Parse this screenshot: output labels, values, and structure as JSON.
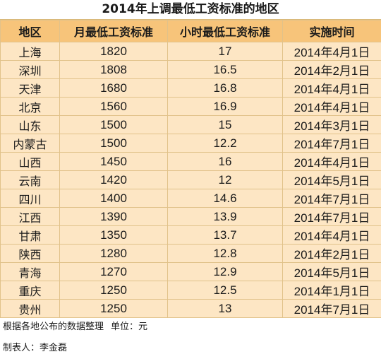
{
  "title": "2014年上调最低工资标准的地区",
  "table": {
    "headers": [
      "地区",
      "月最低工资标准",
      "小时最低工资标准",
      "实施时间"
    ],
    "rows": [
      [
        "上海",
        "1820",
        "17",
        "2014年4月1日"
      ],
      [
        "深圳",
        "1808",
        "16.5",
        "2014年2月1日"
      ],
      [
        "天津",
        "1680",
        "16.8",
        "2014年4月1日"
      ],
      [
        "北京",
        "1560",
        "16.9",
        "2014年4月1日"
      ],
      [
        "山东",
        "1500",
        "15",
        "2014年3月1日"
      ],
      [
        "内蒙古",
        "1500",
        "12.2",
        "2014年7月1日"
      ],
      [
        "山西",
        "1450",
        "16",
        "2014年4月1日"
      ],
      [
        "云南",
        "1420",
        "12",
        "2014年5月1日"
      ],
      [
        "四川",
        "1400",
        "14.6",
        "2014年7月1日"
      ],
      [
        "江西",
        "1390",
        "13.9",
        "2014年7月1日"
      ],
      [
        "甘肃",
        "1350",
        "13.7",
        "2014年4月1日"
      ],
      [
        "陕西",
        "1280",
        "12.8",
        "2014年2月1日"
      ],
      [
        "青海",
        "1270",
        "12.9",
        "2014年5月1日"
      ],
      [
        "重庆",
        "1250",
        "12.5",
        "2014年1月1日"
      ],
      [
        "贵州",
        "1250",
        "13",
        "2014年7月1日"
      ]
    ]
  },
  "footer": {
    "source": "根据各地公布的数据整理",
    "unit": "单位：元",
    "author": "制表人：李金磊"
  },
  "colors": {
    "header_bg": "#f7c47a",
    "cell_bg": "#fde6c4",
    "border": "#e1c28a"
  }
}
